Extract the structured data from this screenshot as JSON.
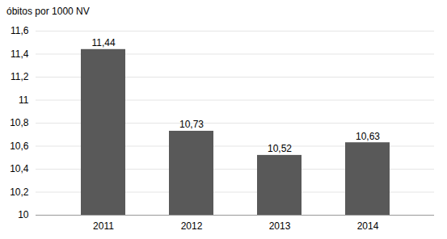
{
  "chart_data": {
    "type": "bar",
    "y_label": "óbitos por 1000 NV",
    "categories": [
      "2011",
      "2012",
      "2013",
      "2014"
    ],
    "values": [
      11.44,
      10.73,
      10.52,
      10.63
    ],
    "value_labels": [
      "11,44",
      "10,73",
      "10,52",
      "10,63"
    ],
    "data_labels": true,
    "color": "#595959",
    "ylim": [
      10,
      11.6
    ],
    "yticks": [
      10,
      {
        "value": 10.2,
        "label": "10,2"
      },
      {
        "value": 10.4,
        "label": "10,4"
      },
      {
        "value": 10.6,
        "label": "10,6"
      },
      {
        "value": 10.8,
        "label": "10,8"
      },
      11,
      {
        "value": 11.2,
        "label": "11,2"
      },
      {
        "value": 11.4,
        "label": "11,4"
      },
      {
        "value": 11.6,
        "label": "11,6"
      }
    ],
    "grid": true
  }
}
